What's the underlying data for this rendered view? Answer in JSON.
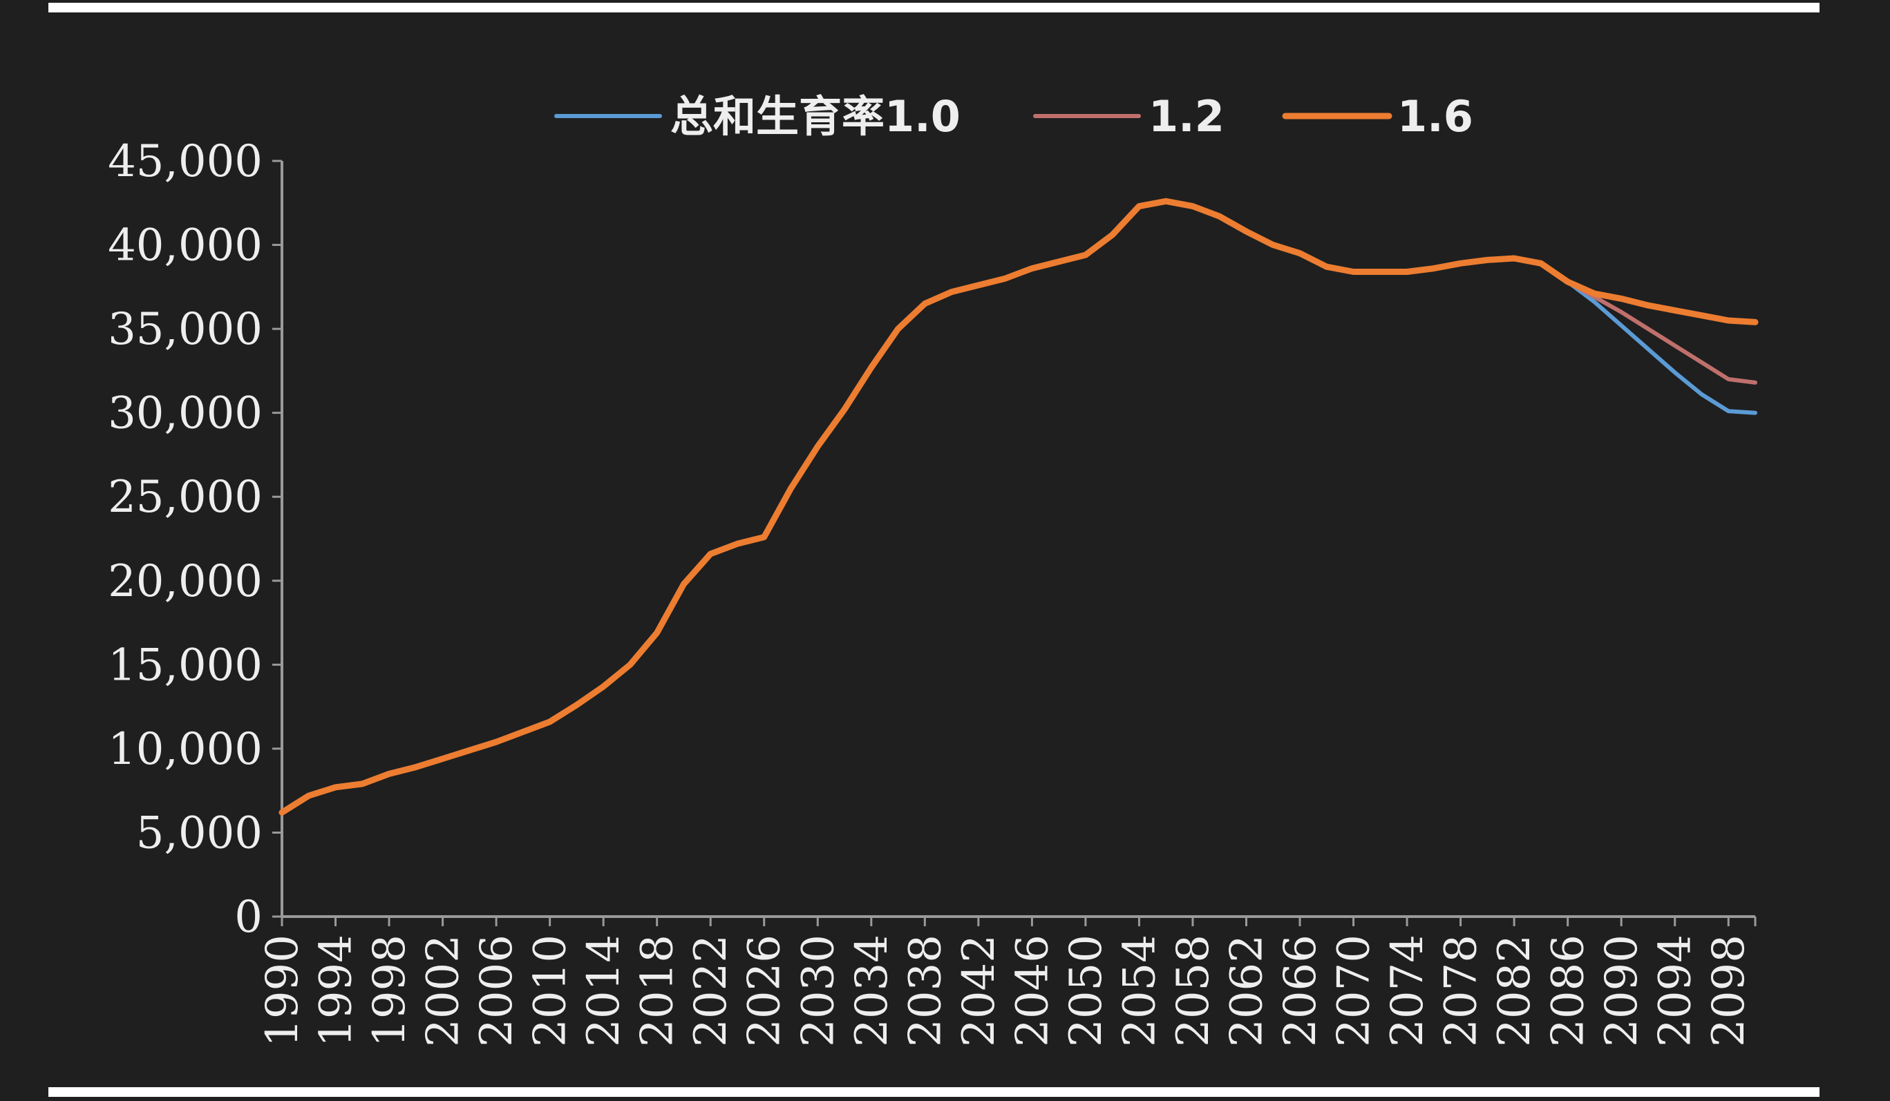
{
  "colors": {
    "background": "#1f1f1f",
    "axis": "#9a9a9a",
    "text": "#eeeeee",
    "series": [
      "#5b9bd5",
      "#c0706c",
      "#ed7d31"
    ]
  },
  "chart_data": {
    "type": "line",
    "title": "",
    "xlabel": "",
    "ylabel": "",
    "xlim": [
      1990,
      2100
    ],
    "ylim": [
      0,
      45000
    ],
    "grid": false,
    "legend_position": "top",
    "y_ticks": [
      0,
      5000,
      10000,
      15000,
      20000,
      25000,
      30000,
      35000,
      40000,
      45000
    ],
    "y_tick_labels": [
      "0",
      "5,000",
      "10,000",
      "15,000",
      "20,000",
      "25,000",
      "30,000",
      "35,000",
      "40,000",
      "45,000"
    ],
    "x_tick_labels": [
      "1990",
      "1994",
      "1998",
      "2002",
      "2006",
      "2010",
      "2014",
      "2018",
      "2022",
      "2026",
      "2030",
      "2034",
      "2038",
      "2042",
      "2046",
      "2050",
      "2054",
      "2058",
      "2062",
      "2066",
      "2070",
      "2074",
      "2078",
      "2082",
      "2086",
      "2090",
      "2094",
      "2098"
    ],
    "x": [
      1990,
      1992,
      1994,
      1996,
      1998,
      2000,
      2002,
      2004,
      2006,
      2008,
      2010,
      2012,
      2014,
      2016,
      2018,
      2020,
      2022,
      2024,
      2026,
      2028,
      2030,
      2032,
      2034,
      2036,
      2038,
      2040,
      2042,
      2044,
      2046,
      2048,
      2050,
      2052,
      2054,
      2056,
      2058,
      2060,
      2062,
      2064,
      2066,
      2068,
      2070,
      2072,
      2074,
      2076,
      2078,
      2080,
      2082,
      2084,
      2086,
      2088,
      2090,
      2092,
      2094,
      2096,
      2098,
      2100
    ],
    "series": [
      {
        "name": "总和生育率1.0",
        "values": [
          6200,
          7200,
          7700,
          7900,
          8500,
          8900,
          9400,
          9900,
          10400,
          11000,
          11600,
          12600,
          13700,
          15000,
          16900,
          19800,
          21600,
          22200,
          22600,
          25500,
          28000,
          30200,
          32700,
          35000,
          36500,
          37200,
          37600,
          38000,
          38600,
          39000,
          39400,
          40600,
          42300,
          42600,
          42300,
          41700,
          40800,
          40000,
          39500,
          38700,
          38400,
          38400,
          38400,
          38600,
          38900,
          39100,
          39200,
          38900,
          37800,
          36600,
          35200,
          33800,
          32400,
          31100,
          30100,
          30000
        ]
      },
      {
        "name": "1.2",
        "values": [
          6200,
          7200,
          7700,
          7900,
          8500,
          8900,
          9400,
          9900,
          10400,
          11000,
          11600,
          12600,
          13700,
          15000,
          16900,
          19800,
          21600,
          22200,
          22600,
          25500,
          28000,
          30200,
          32700,
          35000,
          36500,
          37200,
          37600,
          38000,
          38600,
          39000,
          39400,
          40600,
          42300,
          42600,
          42300,
          41700,
          40800,
          40000,
          39500,
          38700,
          38400,
          38400,
          38400,
          38600,
          38900,
          39100,
          39200,
          38900,
          37800,
          36900,
          36000,
          35000,
          34000,
          33000,
          32000,
          31800
        ]
      },
      {
        "name": "1.6",
        "values": [
          6200,
          7200,
          7700,
          7900,
          8500,
          8900,
          9400,
          9900,
          10400,
          11000,
          11600,
          12600,
          13700,
          15000,
          16900,
          19800,
          21600,
          22200,
          22600,
          25500,
          28000,
          30200,
          32700,
          35000,
          36500,
          37200,
          37600,
          38000,
          38600,
          39000,
          39400,
          40600,
          42300,
          42600,
          42300,
          41700,
          40800,
          40000,
          39500,
          38700,
          38400,
          38400,
          38400,
          38600,
          38900,
          39100,
          39200,
          38900,
          37800,
          37100,
          36800,
          36400,
          36100,
          35800,
          35500,
          35400
        ]
      }
    ]
  }
}
